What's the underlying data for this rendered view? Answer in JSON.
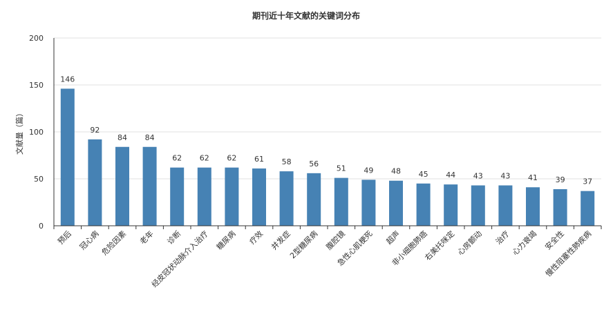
{
  "chart_data": {
    "type": "bar",
    "title": "期刊近十年文献的关键词分布",
    "xlabel": "",
    "ylabel": "文献量（篇）",
    "ylim": [
      0,
      200
    ],
    "yticks": [
      0,
      50,
      100,
      150,
      200
    ],
    "grid": true,
    "bar_color": "#4682b4",
    "categories": [
      "预后",
      "冠心病",
      "危险因素",
      "老年",
      "诊断",
      "经皮冠状动脉介入治疗",
      "糖尿病",
      "疗效",
      "并发症",
      "2型糖尿病",
      "腹腔镜",
      "急性心肌梗死",
      "超声",
      "非小细胞肺癌",
      "右美托咪定",
      "心房颤动",
      "治疗",
      "心力衰竭",
      "安全性",
      "慢性阻塞性肺疾病"
    ],
    "values": [
      146,
      92,
      84,
      84,
      62,
      62,
      62,
      61,
      58,
      56,
      51,
      49,
      48,
      45,
      44,
      43,
      43,
      41,
      39,
      37
    ]
  }
}
